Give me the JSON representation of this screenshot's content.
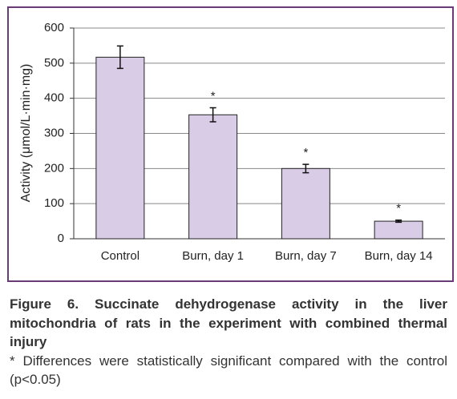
{
  "chart_data": {
    "type": "bar",
    "y_label": "Activity (μmol/L·min·mg)",
    "categories": [
      "Control",
      "Burn, day 1",
      "Burn, day 7",
      "Burn, day 14"
    ],
    "values": [
      517,
      353,
      200,
      50
    ],
    "errors": [
      32,
      20,
      12,
      3
    ],
    "annotations": [
      null,
      "*",
      "*",
      "*"
    ],
    "color": "#d9cce6",
    "ylim": [
      0,
      600
    ],
    "yticks": [
      0,
      100,
      200,
      300,
      400,
      500,
      600
    ],
    "grid": true,
    "caption": "Figure 6. Succinate dehydrogenase activity in the liver mitochondria of rats in the experiment with combined thermal injury",
    "note": "* Differences were statistically significant compared with the control (p<0.05)"
  }
}
